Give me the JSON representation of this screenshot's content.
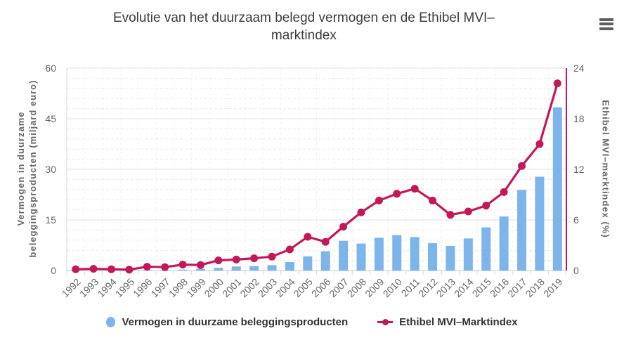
{
  "header": {
    "title": "Evolutie van het duurzaam belegd vermogen en de Ethibel MVI–marktindex"
  },
  "menu": {
    "icon": "hamburger-icon"
  },
  "colors": {
    "bar": "#7cb5ec",
    "line": "#c2185b",
    "grid_major": "#e0e0e0",
    "grid_minor": "#e9e9e9",
    "grid_vertical": "#eef0f4",
    "axis_line": "#ccd6eb",
    "tick_text": "#666666",
    "title_text": "#3d3d3d",
    "legend_text": "#333333"
  },
  "chart_data": {
    "type": "bar+line",
    "title": "Evolutie van het duurzaam belegd vermogen en de Ethibel MVI–marktindex",
    "categories": [
      "1992",
      "1993",
      "1994",
      "1995",
      "1996",
      "1997",
      "1998",
      "1999",
      "2000",
      "2001",
      "2002",
      "2003",
      "2004",
      "2005",
      "2006",
      "2007",
      "2008",
      "2009",
      "2010",
      "2011",
      "2012",
      "2013",
      "2014",
      "2015",
      "2016",
      "2017",
      "2018",
      "2019"
    ],
    "series": [
      {
        "name": "Vermogen in duurzame beleggingsproducten",
        "type": "bar",
        "y_axis": "left",
        "color": "#7cb5ec",
        "values": [
          0.05,
          0.05,
          0.05,
          0.05,
          0.1,
          0.15,
          0.25,
          0.5,
          0.8,
          1.2,
          1.3,
          1.6,
          2.5,
          4.2,
          5.7,
          8.8,
          8.0,
          9.7,
          10.5,
          9.9,
          8.1,
          7.3,
          9.5,
          12.8,
          16.0,
          23.9,
          27.8,
          48.4
        ]
      },
      {
        "name": "Ethibel MVI–Marktindex",
        "type": "line",
        "y_axis": "right",
        "color": "#c2185b",
        "values": [
          0.15,
          0.2,
          0.15,
          0.1,
          0.45,
          0.4,
          0.7,
          0.65,
          1.2,
          1.3,
          1.45,
          1.65,
          2.5,
          4.0,
          3.4,
          5.2,
          6.9,
          8.3,
          9.1,
          9.7,
          8.3,
          6.6,
          7.0,
          7.7,
          9.3,
          12.4,
          15.0,
          22.2
        ]
      }
    ],
    "left_axis": {
      "title": "Vermogen in duurzame beleggingsproducten (miljard euro)",
      "min": 0,
      "max": 60,
      "tick_interval": 15,
      "minor_tick_interval": 3,
      "ticks": [
        0,
        15,
        30,
        45,
        60
      ]
    },
    "right_axis": {
      "title": "Ethibel MVI–marktindex (%)",
      "min": 0,
      "max": 24,
      "tick_interval": 6,
      "ticks": [
        0,
        6,
        12,
        18,
        24
      ]
    },
    "legend_position": "bottom",
    "grid": {
      "major": "solid",
      "minor": "dashed",
      "vertical": "dashed"
    }
  }
}
